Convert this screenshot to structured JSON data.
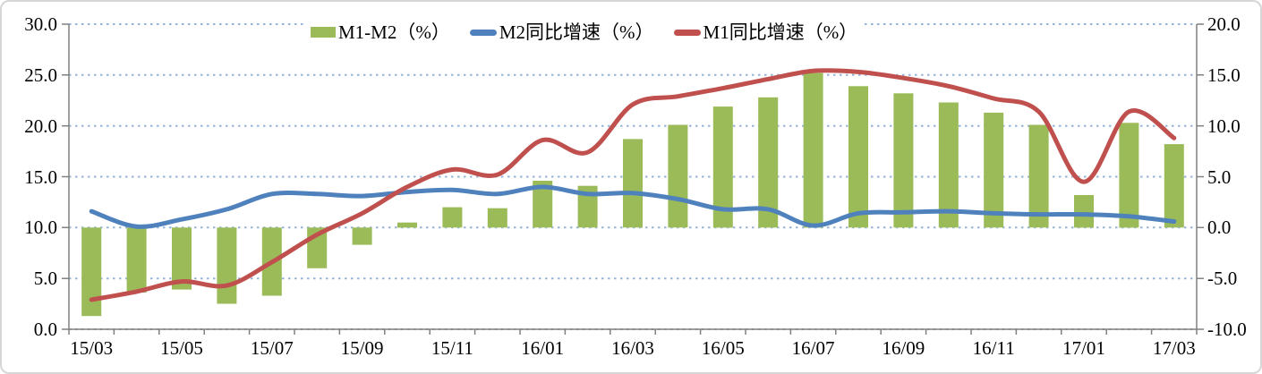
{
  "chart_data": {
    "type": "combo",
    "title": "",
    "grid": true,
    "legend_position": "top",
    "categories": [
      "15/03",
      "15/04",
      "15/05",
      "15/06",
      "15/07",
      "15/08",
      "15/09",
      "15/10",
      "15/11",
      "15/12",
      "16/01",
      "16/02",
      "16/03",
      "16/04",
      "16/05",
      "16/06",
      "16/07",
      "16/08",
      "16/09",
      "16/10",
      "16/11",
      "16/12",
      "17/01",
      "17/02",
      "17/03"
    ],
    "series": [
      {
        "name": "M1-M2（%）",
        "type": "bar",
        "axis": "right",
        "color": "#9BBB59",
        "values": [
          -8.7,
          -6.4,
          -6.1,
          -7.5,
          -6.7,
          -4.0,
          -1.7,
          0.5,
          2.0,
          1.9,
          4.6,
          4.1,
          8.7,
          10.1,
          11.9,
          12.8,
          15.2,
          13.9,
          13.2,
          12.3,
          11.3,
          10.1,
          3.2,
          10.3,
          8.2
        ]
      },
      {
        "name": "M2同比增速（%）",
        "type": "line",
        "axis": "left",
        "color": "#4F81BD",
        "values": [
          11.6,
          10.1,
          10.8,
          11.8,
          13.3,
          13.3,
          13.1,
          13.5,
          13.7,
          13.3,
          14.0,
          13.3,
          13.4,
          12.8,
          11.8,
          11.8,
          10.2,
          11.4,
          11.5,
          11.6,
          11.4,
          11.3,
          11.3,
          11.1,
          10.6
        ]
      },
      {
        "name": "M1同比增速（%）",
        "type": "line",
        "axis": "left",
        "color": "#C0504D",
        "values": [
          2.9,
          3.7,
          4.7,
          4.3,
          6.6,
          9.3,
          11.4,
          14.0,
          15.7,
          15.2,
          18.6,
          17.4,
          22.1,
          22.9,
          23.7,
          24.6,
          25.4,
          25.3,
          24.7,
          23.9,
          22.7,
          21.4,
          14.5,
          21.4,
          18.8
        ]
      }
    ],
    "left_axis": {
      "min": 0,
      "max": 30,
      "step": 5,
      "tick_labels": [
        "30.0",
        "25.0",
        "20.0",
        "15.0",
        "10.0",
        "5.0",
        "0.0"
      ]
    },
    "right_axis": {
      "min": -10,
      "max": 20,
      "step": 5,
      "tick_labels": [
        "20.0",
        "15.0",
        "10.0",
        "5.0",
        "0.0",
        "-5.0",
        "-10.0"
      ]
    },
    "x_axis": {
      "tick_labels": [
        "15/03",
        "15/05",
        "15/07",
        "15/09",
        "15/11",
        "16/01",
        "16/03",
        "16/05",
        "16/07",
        "16/09",
        "16/11",
        "17/01",
        "17/03"
      ],
      "label_every": 2
    }
  },
  "theme": {
    "gridline_color": "#95B3D7",
    "axis_color": "#808080",
    "background": "#FFFFFF",
    "frame_border": "#D6D6D6"
  }
}
